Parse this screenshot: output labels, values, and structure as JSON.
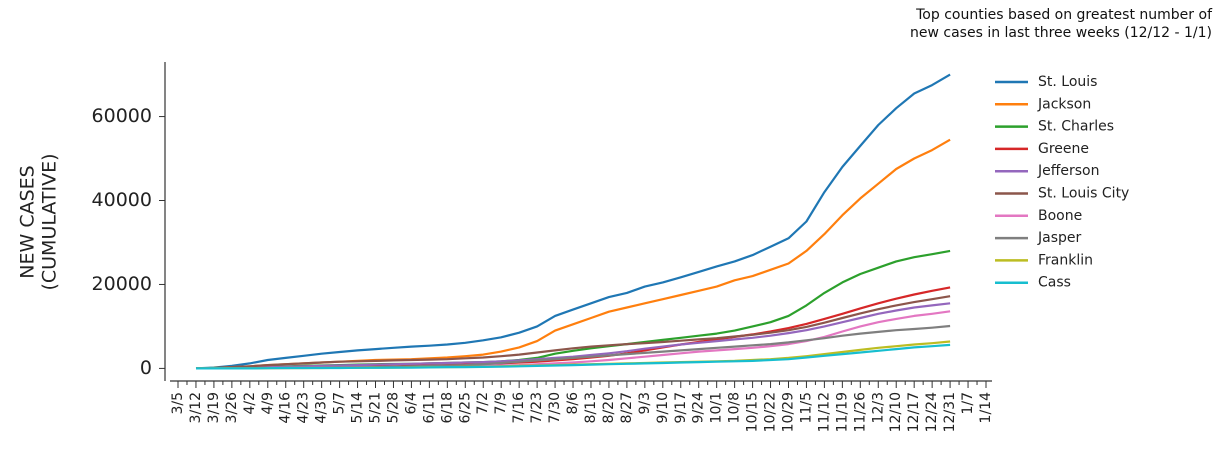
{
  "chart_data": {
    "type": "line",
    "title_lines": [
      "Top counties based on greatest number of",
      "new cases in last three weeks (12/12 - 1/1)"
    ],
    "ylabel": [
      "NEW CASES",
      "(CUMULATIVE)"
    ],
    "categories": [
      "3/5",
      "3/12",
      "3/19",
      "3/26",
      "4/2",
      "4/9",
      "4/16",
      "4/23",
      "4/30",
      "5/7",
      "5/14",
      "5/21",
      "5/28",
      "6/4",
      "6/11",
      "6/18",
      "6/25",
      "7/2",
      "7/9",
      "7/16",
      "7/23",
      "7/30",
      "8/6",
      "8/13",
      "8/20",
      "8/27",
      "9/3",
      "9/10",
      "9/17",
      "9/24",
      "10/1",
      "10/8",
      "10/15",
      "10/22",
      "10/29",
      "11/5",
      "11/12",
      "11/19",
      "11/26",
      "12/3",
      "12/10",
      "12/17",
      "12/24",
      "12/31",
      "1/7",
      "1/14"
    ],
    "ylim": [
      -3000,
      73000
    ],
    "yticks": [
      0,
      20000,
      40000,
      60000
    ],
    "series": [
      {
        "name": "St. Louis",
        "color": "#1f77b4",
        "values": [
          null,
          0,
          200,
          600,
          1200,
          2000,
          2500,
          3000,
          3500,
          3900,
          4300,
          4600,
          4900,
          5200,
          5400,
          5700,
          6100,
          6700,
          7400,
          8500,
          10000,
          12500,
          14000,
          15500,
          17000,
          18000,
          19500,
          20500,
          21700,
          23000,
          24300,
          25500,
          27000,
          29000,
          31000,
          35000,
          42000,
          48000,
          53000,
          58000,
          62000,
          65500,
          67500,
          70000,
          null,
          null
        ]
      },
      {
        "name": "Jackson",
        "color": "#ff7f0e",
        "values": [
          null,
          0,
          100,
          300,
          500,
          800,
          1000,
          1200,
          1400,
          1600,
          1800,
          2000,
          2100,
          2200,
          2400,
          2600,
          2900,
          3300,
          4000,
          5000,
          6500,
          9000,
          10500,
          12000,
          13500,
          14500,
          15500,
          16500,
          17500,
          18500,
          19500,
          21000,
          22000,
          23500,
          25000,
          28000,
          32000,
          36500,
          40500,
          44000,
          47500,
          50000,
          52000,
          54500,
          null,
          null
        ]
      },
      {
        "name": "St. Charles",
        "color": "#2ca02c",
        "values": [
          null,
          0,
          100,
          200,
          300,
          400,
          500,
          600,
          700,
          800,
          900,
          1000,
          1050,
          1100,
          1200,
          1300,
          1400,
          1500,
          1700,
          2000,
          2500,
          3500,
          4200,
          4800,
          5300,
          5800,
          6300,
          6800,
          7300,
          7800,
          8300,
          9000,
          10000,
          11000,
          12500,
          15000,
          18000,
          20500,
          22500,
          24000,
          25500,
          26500,
          27200,
          28000,
          null,
          null
        ]
      },
      {
        "name": "Greene",
        "color": "#d62728",
        "values": [
          null,
          0,
          0,
          100,
          100,
          200,
          200,
          300,
          300,
          400,
          400,
          500,
          500,
          600,
          700,
          800,
          900,
          1000,
          1200,
          1400,
          1600,
          1900,
          2200,
          2600,
          3000,
          3600,
          4300,
          5000,
          5700,
          6300,
          6900,
          7500,
          8100,
          8800,
          9600,
          10600,
          11800,
          13000,
          14300,
          15500,
          16600,
          17600,
          18500,
          19300,
          null,
          null
        ]
      },
      {
        "name": "Jefferson",
        "color": "#9467bd",
        "values": [
          null,
          0,
          50,
          100,
          200,
          300,
          400,
          500,
          600,
          700,
          800,
          900,
          1000,
          1100,
          1200,
          1300,
          1400,
          1500,
          1700,
          1900,
          2200,
          2500,
          2800,
          3200,
          3600,
          4100,
          4700,
          5200,
          5700,
          6100,
          6500,
          6900,
          7300,
          7800,
          8400,
          9100,
          10000,
          11000,
          12000,
          13000,
          13800,
          14500,
          15000,
          15500,
          null,
          null
        ]
      },
      {
        "name": "St. Louis City",
        "color": "#8c564b",
        "values": [
          null,
          0,
          100,
          300,
          500,
          800,
          1000,
          1200,
          1400,
          1600,
          1700,
          1800,
          1900,
          2000,
          2100,
          2200,
          2400,
          2600,
          2900,
          3300,
          3800,
          4300,
          4800,
          5200,
          5500,
          5800,
          6000,
          6300,
          6600,
          6900,
          7200,
          7600,
          8000,
          8500,
          9100,
          9900,
          10900,
          12000,
          13100,
          14100,
          15000,
          15800,
          16500,
          17200,
          null,
          null
        ]
      },
      {
        "name": "Boone",
        "color": "#e377c2",
        "values": [
          null,
          0,
          0,
          0,
          50,
          100,
          100,
          150,
          200,
          200,
          250,
          300,
          300,
          350,
          400,
          450,
          500,
          600,
          700,
          800,
          1000,
          1200,
          1400,
          1700,
          2000,
          2400,
          2800,
          3200,
          3600,
          4000,
          4300,
          4600,
          4900,
          5300,
          5800,
          6500,
          7500,
          8800,
          10000,
          11000,
          11800,
          12500,
          13000,
          13600,
          null,
          null
        ]
      },
      {
        "name": "Jasper",
        "color": "#7f7f7f",
        "values": [
          null,
          0,
          0,
          0,
          50,
          100,
          100,
          100,
          150,
          200,
          200,
          300,
          400,
          500,
          600,
          700,
          800,
          1000,
          1300,
          1600,
          1900,
          2200,
          2500,
          2800,
          3100,
          3400,
          3700,
          4000,
          4300,
          4600,
          4900,
          5200,
          5500,
          5800,
          6200,
          6700,
          7200,
          7800,
          8300,
          8700,
          9100,
          9400,
          9700,
          10100,
          null,
          null
        ]
      },
      {
        "name": "Franklin",
        "color": "#bcbd22",
        "values": [
          null,
          0,
          0,
          0,
          0,
          50,
          100,
          100,
          100,
          150,
          150,
          200,
          200,
          250,
          300,
          300,
          350,
          400,
          500,
          600,
          700,
          800,
          900,
          1000,
          1100,
          1200,
          1300,
          1400,
          1500,
          1600,
          1700,
          1800,
          2000,
          2200,
          2500,
          2900,
          3400,
          3900,
          4400,
          4900,
          5300,
          5700,
          6000,
          6400,
          null,
          null
        ]
      },
      {
        "name": "Cass",
        "color": "#17becf",
        "values": [
          null,
          0,
          0,
          0,
          0,
          50,
          100,
          100,
          100,
          100,
          150,
          150,
          200,
          200,
          250,
          300,
          300,
          350,
          400,
          500,
          600,
          700,
          800,
          900,
          1000,
          1100,
          1200,
          1300,
          1400,
          1500,
          1600,
          1700,
          1800,
          2000,
          2200,
          2600,
          3000,
          3400,
          3800,
          4200,
          4600,
          5000,
          5300,
          5600,
          null,
          null
        ]
      }
    ]
  }
}
